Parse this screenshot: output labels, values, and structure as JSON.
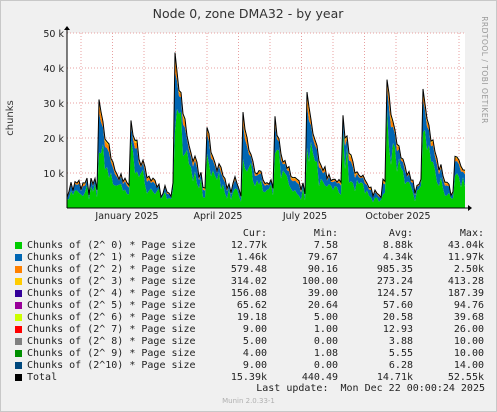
{
  "chart_data": {
    "type": "area",
    "title": "Node 0, zone DMA32 - by year",
    "ylabel": "chunks",
    "ylim": [
      0,
      50000
    ],
    "y_ticks": [
      "10 k",
      "20 k",
      "30 k",
      "40 k",
      "50 k"
    ],
    "y_tick_values": [
      10000,
      20000,
      30000,
      40000,
      50000
    ],
    "x_ticks": [
      "January 2025",
      "April 2025",
      "July 2025",
      "October 2025"
    ],
    "side_text": "RRDTOOL / TOBI OETIKER",
    "grid": true,
    "stacked": true,
    "series": [
      {
        "name": "Chunks of (2^ 0) * Page size",
        "color": "#00cc00",
        "cur": "12.77k",
        "min": "7.58",
        "avg": "8.88k",
        "max": "43.04k"
      },
      {
        "name": "Chunks of (2^ 1) * Page size",
        "color": "#0066b3",
        "cur": "1.46k",
        "min": "79.67",
        "avg": "4.34k",
        "max": "11.97k"
      },
      {
        "name": "Chunks of (2^ 2) * Page size",
        "color": "#ff8000",
        "cur": "579.48",
        "min": "90.16",
        "avg": "985.35",
        "max": "2.50k"
      },
      {
        "name": "Chunks of (2^ 3) * Page size",
        "color": "#ffcc00",
        "cur": "314.02",
        "min": "100.00",
        "avg": "273.24",
        "max": "413.28"
      },
      {
        "name": "Chunks of (2^ 4) * Page size",
        "color": "#330099",
        "cur": "156.08",
        "min": "39.00",
        "avg": "124.57",
        "max": "187.39"
      },
      {
        "name": "Chunks of (2^ 5) * Page size",
        "color": "#990099",
        "cur": "65.62",
        "min": "20.64",
        "avg": "57.60",
        "max": "94.76"
      },
      {
        "name": "Chunks of (2^ 6) * Page size",
        "color": "#ccff00",
        "cur": "19.18",
        "min": "5.00",
        "avg": "20.58",
        "max": "39.68"
      },
      {
        "name": "Chunks of (2^ 7) * Page size",
        "color": "#ff0000",
        "cur": "9.00",
        "min": "1.00",
        "avg": "12.93",
        "max": "26.00"
      },
      {
        "name": "Chunks of (2^ 8) * Page size",
        "color": "#808080",
        "cur": "5.00",
        "min": "0.00",
        "avg": "3.88",
        "max": "10.00"
      },
      {
        "name": "Chunks of (2^ 9) * Page size",
        "color": "#008f00",
        "cur": "4.00",
        "min": "1.08",
        "avg": "5.55",
        "max": "10.00"
      },
      {
        "name": "Chunks of (2^10) * Page size",
        "color": "#00487d",
        "cur": "9.00",
        "min": "0.00",
        "avg": "6.28",
        "max": "14.00"
      },
      {
        "name": "Total",
        "color": "#000000",
        "cur": "15.39k",
        "min": "440.49",
        "avg": "14.71k",
        "max": "52.55k"
      }
    ]
  },
  "legend_headers": {
    "cur": "Cur:",
    "min": "Min:",
    "avg": "Avg:",
    "max": "Max:"
  },
  "last_update": "Last update:  Mon Dec 22 00:00:24 2025",
  "footer": "Munin 2.0.33-1"
}
